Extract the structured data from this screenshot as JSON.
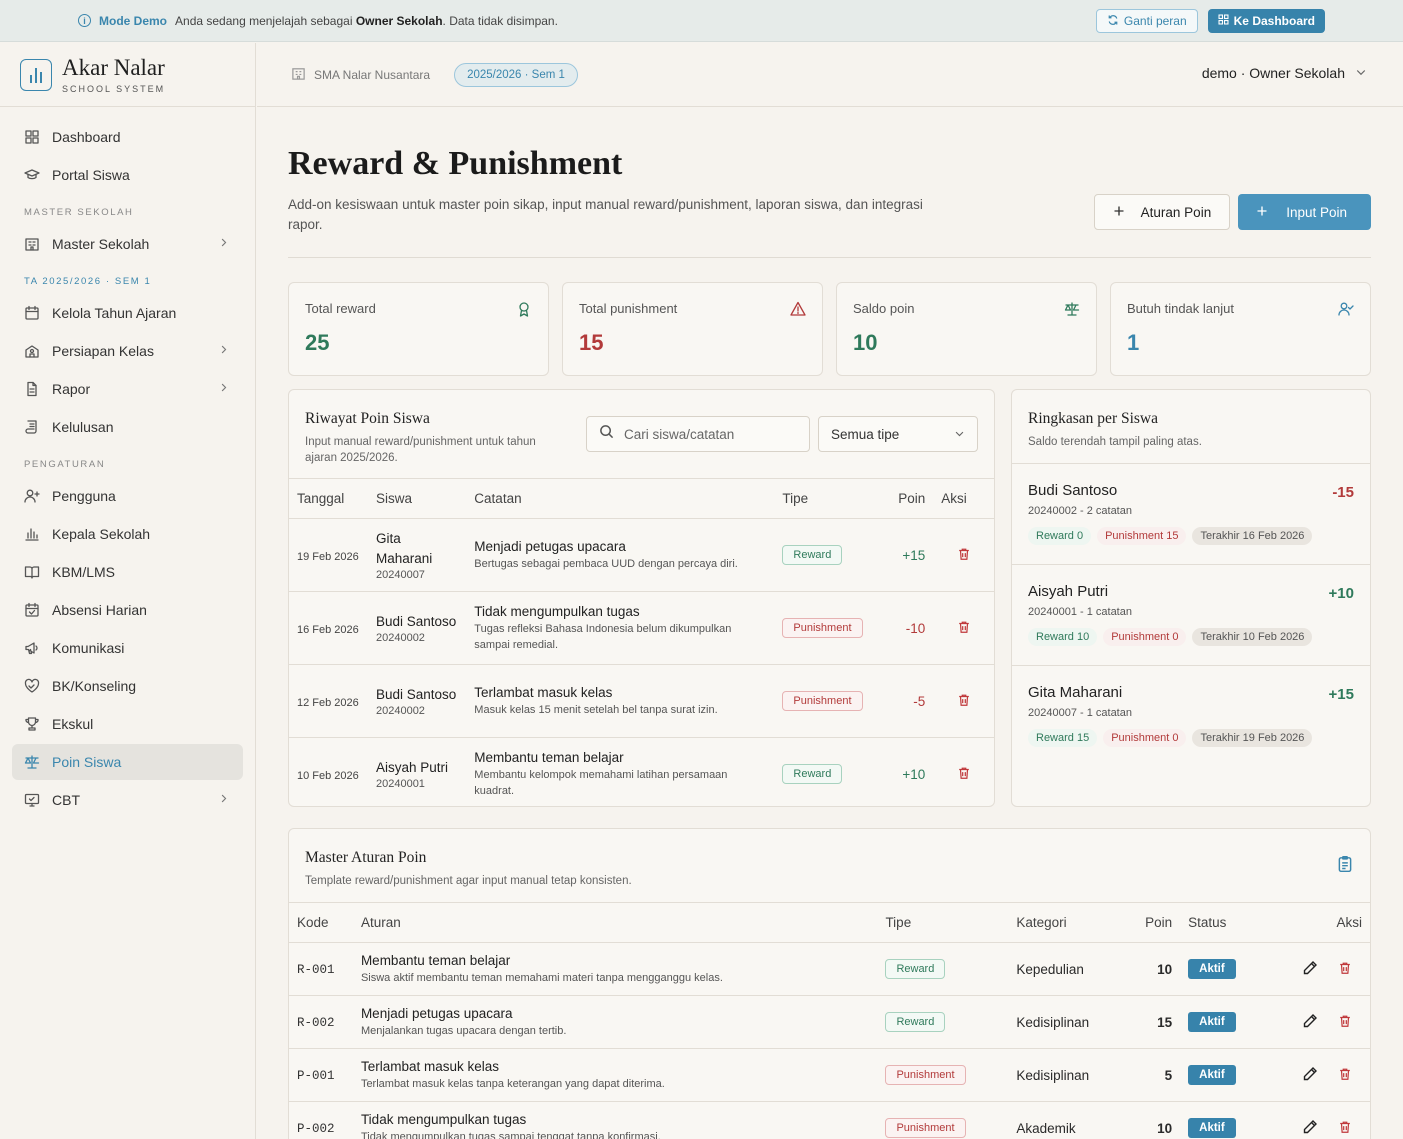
{
  "demo_bar": {
    "mode": "Mode Demo",
    "message_prefix": "Anda sedang menjelajah sebagai",
    "role": "Owner Sekolah",
    "message_suffix": ". Data tidak disimpan.",
    "switch_label": "Ganti peran",
    "dashboard_label": "Ke Dashboard"
  },
  "brand": {
    "name": "Akar Nalar",
    "sub": "SCHOOL SYSTEM"
  },
  "sidebar": {
    "top": [
      {
        "label": "Dashboard",
        "icon": "grid-icon"
      },
      {
        "label": "Portal Siswa",
        "icon": "graduation-cap-icon"
      }
    ],
    "section_master": "MASTER SEKOLAH",
    "master": [
      {
        "label": "Master Sekolah",
        "icon": "building-icon",
        "chevron": true
      }
    ],
    "section_ta": "TA 2025/2026 · SEM 1",
    "ta": [
      {
        "label": "Kelola Tahun Ajaran",
        "icon": "calendar-icon"
      },
      {
        "label": "Persiapan Kelas",
        "icon": "school-icon",
        "chevron": true
      },
      {
        "label": "Rapor",
        "icon": "document-icon",
        "chevron": true
      },
      {
        "label": "Kelulusan",
        "icon": "scroll-icon"
      }
    ],
    "section_settings": "PENGATURAN",
    "settings": [
      {
        "label": "Pengguna",
        "icon": "user-plus-icon"
      },
      {
        "label": "Kepala Sekolah",
        "icon": "bar-chart-icon"
      },
      {
        "label": "KBM/LMS",
        "icon": "book-icon"
      },
      {
        "label": "Absensi Harian",
        "icon": "calendar-check-icon"
      },
      {
        "label": "Komunikasi",
        "icon": "megaphone-icon"
      },
      {
        "label": "BK/Konseling",
        "icon": "heart-handshake-icon"
      },
      {
        "label": "Ekskul",
        "icon": "trophy-icon"
      },
      {
        "label": "Poin Siswa",
        "icon": "scale-icon",
        "active": true
      },
      {
        "label": "CBT",
        "icon": "monitor-icon",
        "chevron": true
      }
    ]
  },
  "header": {
    "school": "SMA Nalar Nusantara",
    "year": "2025/2026 · Sem 1",
    "user": "demo · Owner Sekolah"
  },
  "page": {
    "title": "Reward & Punishment",
    "description": "Add-on kesiswaan untuk master poin sikap, input manual reward/punishment, laporan siswa, dan integrasi rapor.",
    "btn_rules": "Aturan Poin",
    "btn_input": "Input Poin"
  },
  "stats": [
    {
      "label": "Total reward",
      "value": "25",
      "color": "#2f7a5b",
      "icon": "award-icon"
    },
    {
      "label": "Total punishment",
      "value": "15",
      "color": "#b23a3a",
      "icon": "warning-icon"
    },
    {
      "label": "Saldo poin",
      "value": "10",
      "color": "#2f7a5b",
      "icon": "scale-icon"
    },
    {
      "label": "Butuh tindak lanjut",
      "value": "1",
      "color": "#3a86ad",
      "icon": "user-check-icon"
    }
  ],
  "history": {
    "title": "Riwayat Poin Siswa",
    "subtitle": "Input manual reward/punishment untuk tahun ajaran 2025/2026.",
    "search_placeholder": "Cari siswa/catatan",
    "filter": "Semua tipe",
    "columns": [
      "Tanggal",
      "Siswa",
      "Catatan",
      "Tipe",
      "Poin",
      "Aksi"
    ],
    "rows": [
      {
        "date": "19 Feb 2026",
        "name": "Gita Maharani",
        "nis": "20240007",
        "note": "Menjadi petugas upacara",
        "desc": "Bertugas sebagai pembaca UUD dengan percaya diri.",
        "type": "Reward",
        "points": "+15"
      },
      {
        "date": "16 Feb 2026",
        "name": "Budi Santoso",
        "nis": "20240002",
        "note": "Tidak mengumpulkan tugas",
        "desc": "Tugas refleksi Bahasa Indonesia belum dikumpulkan sampai remedial.",
        "type": "Punishment",
        "points": "-10"
      },
      {
        "date": "12 Feb 2026",
        "name": "Budi Santoso",
        "nis": "20240002",
        "note": "Terlambat masuk kelas",
        "desc": "Masuk kelas 15 menit setelah bel tanpa surat izin.",
        "type": "Punishment",
        "points": "-5"
      },
      {
        "date": "10 Feb 2026",
        "name": "Aisyah Putri",
        "nis": "20240001",
        "note": "Membantu teman belajar",
        "desc": "Membantu kelompok memahami latihan persamaan kuadrat.",
        "type": "Reward",
        "points": "+10"
      }
    ]
  },
  "summary": {
    "title": "Ringkasan per Siswa",
    "subtitle": "Saldo terendah tampil paling atas.",
    "items": [
      {
        "name": "Budi Santoso",
        "score": "-15",
        "meta": "20240002 - 2 catatan",
        "reward": "Reward 0",
        "punishment": "Punishment 15",
        "last": "Terakhir 16 Feb 2026"
      },
      {
        "name": "Aisyah Putri",
        "score": "+10",
        "meta": "20240001 - 1 catatan",
        "reward": "Reward 10",
        "punishment": "Punishment 0",
        "last": "Terakhir 10 Feb 2026"
      },
      {
        "name": "Gita Maharani",
        "score": "+15",
        "meta": "20240007 - 1 catatan",
        "reward": "Reward 15",
        "punishment": "Punishment 0",
        "last": "Terakhir 19 Feb 2026"
      }
    ]
  },
  "rules": {
    "title": "Master Aturan Poin",
    "subtitle": "Template reward/punishment agar input manual tetap konsisten.",
    "columns": [
      "Kode",
      "Aturan",
      "Tipe",
      "Kategori",
      "Poin",
      "Status",
      "Aksi"
    ],
    "rows": [
      {
        "code": "R-001",
        "name": "Membantu teman belajar",
        "desc": "Siswa aktif membantu teman memahami materi tanpa mengganggu kelas.",
        "type": "Reward",
        "category": "Kepedulian",
        "points": "10",
        "status": "Aktif"
      },
      {
        "code": "R-002",
        "name": "Menjadi petugas upacara",
        "desc": "Menjalankan tugas upacara dengan tertib.",
        "type": "Reward",
        "category": "Kedisiplinan",
        "points": "15",
        "status": "Aktif"
      },
      {
        "code": "P-001",
        "name": "Terlambat masuk kelas",
        "desc": "Terlambat masuk kelas tanpa keterangan yang dapat diterima.",
        "type": "Punishment",
        "category": "Kedisiplinan",
        "points": "5",
        "status": "Aktif"
      },
      {
        "code": "P-002",
        "name": "Tidak mengumpulkan tugas",
        "desc": "Tidak mengumpulkan tugas sampai tenggat tanpa konfirmasi.",
        "type": "Punishment",
        "category": "Akademik",
        "points": "10",
        "status": "Aktif"
      }
    ]
  }
}
